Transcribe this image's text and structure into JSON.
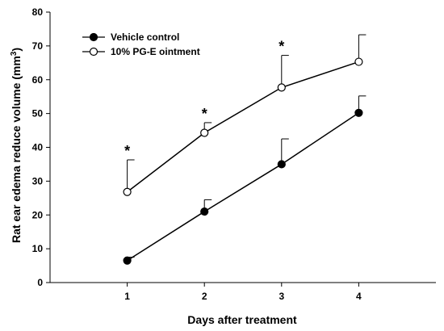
{
  "chart_data": {
    "type": "line",
    "title": "",
    "xlabel": "Days after treatment",
    "ylabel_main": "Rat ear edema reduce volume (mm",
    "ylabel_sup": "3",
    "ylabel_close": ")",
    "x": [
      1,
      2,
      3,
      4
    ],
    "x_ticks": [
      "1",
      "2",
      "3",
      "4"
    ],
    "xlim": [
      0,
      5
    ],
    "ylim": [
      0,
      80
    ],
    "y_ticks": [
      "0",
      "10",
      "20",
      "30",
      "40",
      "50",
      "60",
      "70",
      "80"
    ],
    "grid": false,
    "legend_position": "top-left",
    "series": [
      {
        "name": "Vehicle control",
        "marker": "filled-circle",
        "values": [
          6.5,
          21,
          35,
          50.2
        ],
        "error_upper": [
          1,
          3.5,
          7.5,
          5
        ]
      },
      {
        "name": "10% PG-E ointment",
        "marker": "open-circle",
        "values": [
          26.8,
          44.3,
          57.7,
          65.3
        ],
        "error_upper": [
          9.5,
          3,
          9.5,
          8
        ]
      }
    ],
    "annotations": [
      {
        "text": "*",
        "x": 1
      },
      {
        "text": "*",
        "x": 2
      },
      {
        "text": "*",
        "x": 3
      }
    ]
  }
}
